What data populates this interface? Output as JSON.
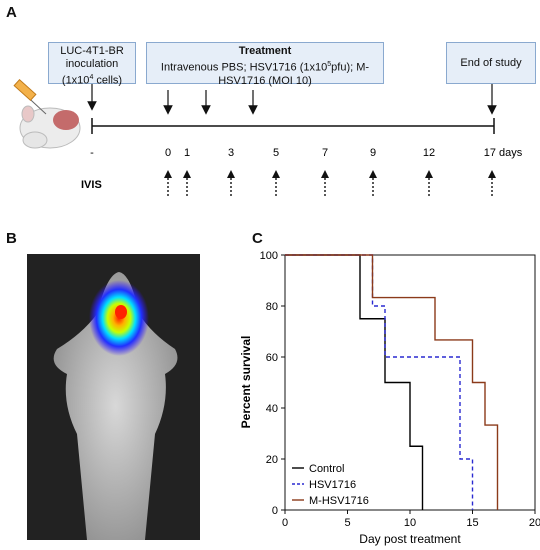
{
  "panels": {
    "a": "A",
    "b": "B",
    "c": "C"
  },
  "timeline": {
    "box_inoculation": [
      "LUC-4T1-BR",
      "inoculation",
      "(1x10",
      "4",
      " cells)"
    ],
    "box_treatment_title": "Treatment",
    "box_treatment_lines": [
      "Intravenous PBS; HSV1716 (1x10",
      "5",
      "pfu); M-",
      "HSV1716 (MOI 10)"
    ],
    "box_end": "End of study",
    "days": [
      "-",
      "0",
      "1",
      "3",
      "5",
      "7",
      "9",
      "12",
      "17 days"
    ],
    "ivis_label": "IVIS"
  },
  "chart_data": {
    "type": "line",
    "subtype": "kaplan-meier step",
    "xlabel": "Day post treatment",
    "ylabel": "Percent survival",
    "xlim": [
      0,
      20
    ],
    "ylim": [
      0,
      100
    ],
    "xticks": [
      "0",
      "5",
      "10",
      "15",
      "20"
    ],
    "yticks": [
      "0",
      "20",
      "40",
      "60",
      "80",
      "100"
    ],
    "legend_position": "bottom-left",
    "series": [
      {
        "name": "Control",
        "color": "#000000",
        "style": "solid",
        "x": [
          0,
          6,
          6,
          8,
          8,
          10,
          10,
          11,
          11
        ],
        "y": [
          100,
          100,
          75,
          75,
          50,
          50,
          25,
          25,
          0
        ]
      },
      {
        "name": "HSV1716",
        "color": "#2a2ad0",
        "style": "dashed",
        "x": [
          0,
          7,
          7,
          8,
          8,
          14,
          14,
          15,
          15
        ],
        "y": [
          100,
          100,
          80,
          80,
          60,
          60,
          20,
          20,
          0
        ]
      },
      {
        "name": "M-HSV1716",
        "color": "#8b3a1a",
        "style": "solid",
        "x": [
          0,
          7,
          7,
          12,
          12,
          15,
          15,
          16,
          16,
          17,
          17
        ],
        "y": [
          100,
          100,
          83.3,
          83.3,
          66.7,
          66.7,
          50,
          50,
          33.3,
          33.3,
          0
        ]
      }
    ]
  }
}
